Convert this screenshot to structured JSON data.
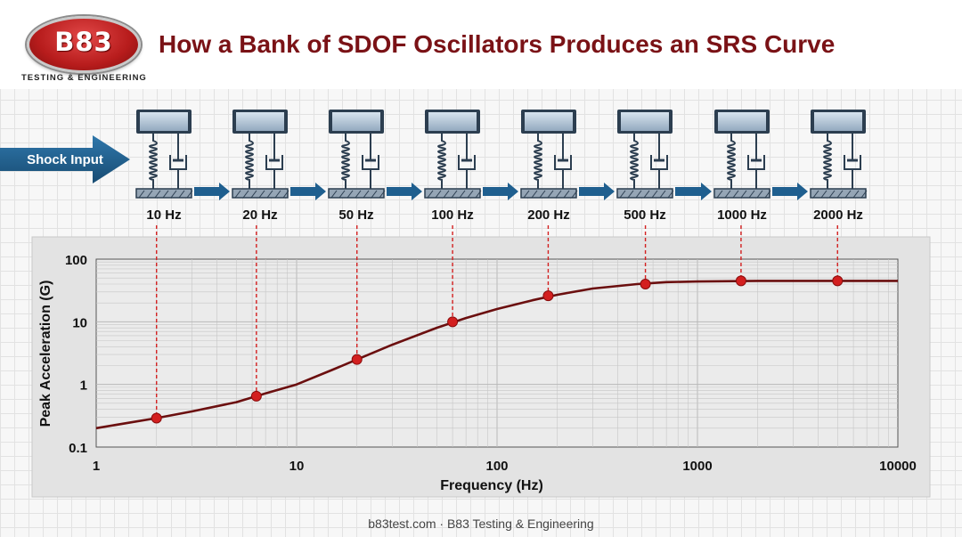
{
  "logo": {
    "text": "B83",
    "tagline": "TESTING & ENGINEERING"
  },
  "title": "How a Bank of SDOF Oscillators Produces an SRS Curve",
  "input_label": "Shock Input",
  "oscillators": [
    {
      "label": "10 Hz"
    },
    {
      "label": "20 Hz"
    },
    {
      "label": "50 Hz"
    },
    {
      "label": "100 Hz"
    },
    {
      "label": "200 Hz"
    },
    {
      "label": "500 Hz"
    },
    {
      "label": "1000 Hz"
    },
    {
      "label": "2000 Hz"
    }
  ],
  "footer": "b83test.com · B83 Testing & Engineering",
  "colors": {
    "title": "#7a1216",
    "curve": "#6b0f0f",
    "marker": "#d31f1f",
    "arrow": "#1f5f8f",
    "grid": "#c6c6c6",
    "plot_bg": "#e9e9e9"
  },
  "chart_data": {
    "type": "line",
    "xlabel": "Frequency (Hz)",
    "ylabel": "Peak Acceleration (G)",
    "xscale": "log",
    "yscale": "log",
    "xlim": [
      1,
      10000
    ],
    "ylim": [
      0.1,
      100
    ],
    "xticks": [
      "1",
      "10",
      "100",
      "1000",
      "10000"
    ],
    "yticks": [
      "0.1",
      "1",
      "10",
      "100"
    ],
    "grid": true,
    "series": [
      {
        "values_x": [
          1,
          2,
          3,
          5,
          7,
          10,
          15,
          20,
          30,
          50,
          70,
          100,
          150,
          200,
          300,
          500,
          700,
          1000,
          2000,
          5000,
          10000
        ],
        "values_y": [
          0.2,
          0.29,
          0.37,
          0.52,
          0.72,
          1.0,
          1.7,
          2.5,
          4.3,
          8.0,
          11.5,
          16,
          22,
          27,
          34,
          40,
          43,
          44,
          45,
          45,
          45
        ]
      }
    ],
    "markers": {
      "x": [
        2,
        6.3,
        20,
        60,
        180,
        550,
        1650,
        5000
      ],
      "y": [
        0.29,
        0.65,
        2.5,
        10,
        26,
        40,
        45,
        45
      ]
    }
  }
}
